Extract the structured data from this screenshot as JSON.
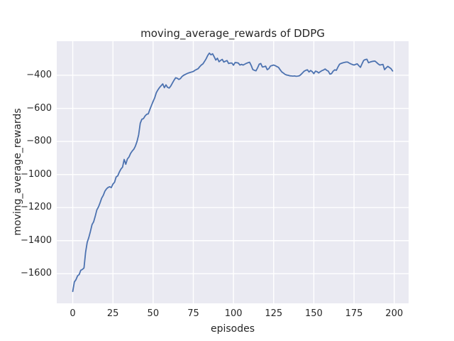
{
  "chart_data": {
    "type": "line",
    "title": "moving_average_rewards of DDPG",
    "xlabel": "episodes",
    "ylabel": "moving_average_rewards",
    "legend": null,
    "grid": true,
    "plot_bg_color": "#EAEAF2",
    "grid_color": "#FFFFFF",
    "text_color": "#262626",
    "xlim": [
      -9.95,
      208.95
    ],
    "ylim": [
      -1779.1,
      -193.9
    ],
    "xticks": {
      "values": [
        0,
        25,
        50,
        75,
        100,
        125,
        150,
        175,
        200
      ],
      "labels": [
        "0",
        "25",
        "50",
        "75",
        "100",
        "125",
        "150",
        "175",
        "200"
      ]
    },
    "yticks": {
      "values": [
        -400,
        -600,
        -800,
        -1000,
        -1200,
        -1400,
        -1600
      ],
      "labels": [
        "−400",
        "−600",
        "−800",
        "−1000",
        "−1200",
        "−1400",
        "−1600"
      ]
    },
    "series": [
      {
        "name": "moving_average_rewards",
        "color": "#4C72B0",
        "x_start": 0,
        "x_step": 1,
        "values": [
          -1707,
          -1650,
          -1636,
          -1613,
          -1605,
          -1579,
          -1574,
          -1565,
          -1470,
          -1410,
          -1381,
          -1344,
          -1303,
          -1286,
          -1252,
          -1214,
          -1196,
          -1171,
          -1143,
          -1126,
          -1101,
          -1087,
          -1078,
          -1074,
          -1079,
          -1058,
          -1047,
          -1015,
          -1008,
          -985,
          -967,
          -955,
          -909,
          -938,
          -906,
          -894,
          -872,
          -858,
          -847,
          -828,
          -800,
          -760,
          -690,
          -666,
          -662,
          -646,
          -636,
          -633,
          -606,
          -582,
          -558,
          -536,
          -505,
          -488,
          -474,
          -463,
          -452,
          -475,
          -458,
          -473,
          -477,
          -465,
          -447,
          -430,
          -415,
          -418,
          -425,
          -420,
          -407,
          -400,
          -395,
          -390,
          -386,
          -383,
          -380,
          -377,
          -370,
          -365,
          -360,
          -348,
          -338,
          -331,
          -316,
          -300,
          -280,
          -266,
          -276,
          -270,
          -288,
          -308,
          -297,
          -318,
          -310,
          -304,
          -320,
          -315,
          -311,
          -329,
          -326,
          -326,
          -339,
          -323,
          -324,
          -326,
          -338,
          -334,
          -338,
          -333,
          -328,
          -324,
          -321,
          -340,
          -365,
          -370,
          -373,
          -355,
          -333,
          -329,
          -350,
          -348,
          -345,
          -366,
          -360,
          -344,
          -341,
          -338,
          -342,
          -347,
          -352,
          -366,
          -379,
          -386,
          -394,
          -398,
          -400,
          -403,
          -404,
          -405,
          -404,
          -406,
          -405,
          -403,
          -395,
          -385,
          -375,
          -370,
          -367,
          -380,
          -371,
          -378,
          -390,
          -375,
          -378,
          -386,
          -378,
          -372,
          -368,
          -362,
          -370,
          -375,
          -393,
          -390,
          -375,
          -367,
          -370,
          -350,
          -333,
          -328,
          -325,
          -322,
          -320,
          -320,
          -326,
          -331,
          -335,
          -338,
          -334,
          -331,
          -342,
          -352,
          -330,
          -310,
          -305,
          -303,
          -324,
          -320,
          -317,
          -315,
          -314,
          -322,
          -331,
          -338,
          -336,
          -334,
          -366,
          -355,
          -346,
          -353,
          -360,
          -374
        ]
      }
    ]
  }
}
